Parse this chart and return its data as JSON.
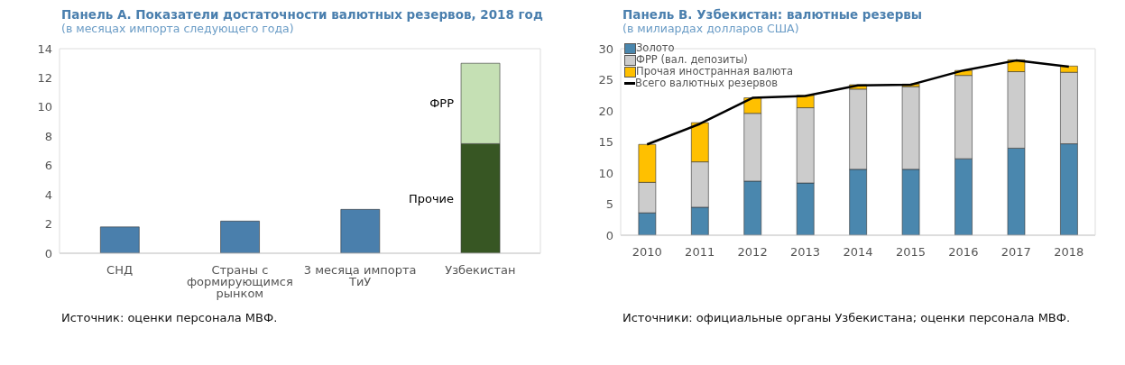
{
  "chart_data": [
    {
      "type": "bar",
      "title": "Панель А. Показатели достаточности валютных резервов, 2018 год",
      "subtitle": "(в месяцах импорта следующего года)",
      "categories": [
        "СНД",
        "Страны с формирующимся рынком",
        "3 месяца импорта ТиУ",
        "Узбекистан"
      ],
      "stacked": true,
      "series": [
        {
          "color": "#4a7fac",
          "values": [
            1.8,
            2.2,
            3.0,
            null
          ]
        },
        {
          "name": "Прочие",
          "color": "#375623",
          "values": [
            null,
            null,
            null,
            7.5
          ]
        },
        {
          "name": "ФРР",
          "color": "#c5e0b4",
          "values": [
            null,
            null,
            null,
            5.5
          ]
        }
      ],
      "ylim": [
        0,
        14
      ],
      "yticks": [
        0,
        2,
        4,
        6,
        8,
        10,
        12,
        14
      ],
      "grid": false,
      "legend": false,
      "annotations": [
        "Источник: оценки персонала МВФ."
      ]
    },
    {
      "type": "bar",
      "title": "Панель В. Узбекистан: валютные резервы",
      "subtitle": "(в милиардах долларов США)",
      "categories": [
        "2010",
        "2011",
        "2012",
        "2013",
        "2014",
        "2015",
        "2016",
        "2017",
        "2018"
      ],
      "stacked": true,
      "series": [
        {
          "name": "Золото",
          "color": "#4a87ae",
          "values": [
            3.6,
            4.5,
            8.7,
            8.4,
            10.6,
            10.6,
            12.3,
            14.0,
            14.7
          ]
        },
        {
          "name": "ФРР (вал. депозиты)",
          "color": "#cccccc",
          "values": [
            4.9,
            7.3,
            10.9,
            12.1,
            12.9,
            13.3,
            13.4,
            12.3,
            11.5
          ]
        },
        {
          "name": "Прочая иностранная валюта",
          "color": "#ffc000",
          "values": [
            6.1,
            6.3,
            2.5,
            2.0,
            0.7,
            0.4,
            0.8,
            1.9,
            1.0
          ]
        },
        {
          "name": "Всего валютных резервов",
          "type": "line",
          "color": "#000000",
          "values": [
            14.6,
            17.9,
            22.1,
            22.4,
            24.1,
            24.2,
            26.5,
            28.1,
            27.1
          ]
        }
      ],
      "ylim": [
        0,
        30
      ],
      "yticks": [
        0,
        5,
        10,
        15,
        20,
        25,
        30
      ],
      "grid": false,
      "legend": "top left",
      "marker": "none",
      "annotations": [
        "Источники: официальные органы Узбекистана; оценки персонала МВФ."
      ]
    }
  ]
}
